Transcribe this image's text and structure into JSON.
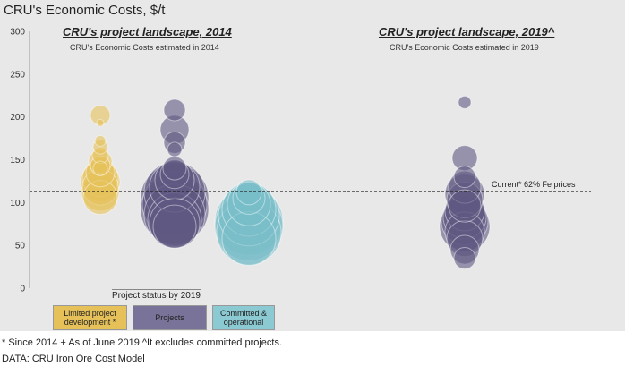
{
  "chart_data": {
    "type": "scatter",
    "title": "CRU's Economic Costs, $/t",
    "ylim": [
      0,
      300
    ],
    "yticks": [
      0,
      50,
      100,
      150,
      200,
      250,
      300
    ],
    "panels": [
      {
        "title": "CRU's project landscape, 2014",
        "note": "CRU's Economic Costs estimated in 2014"
      },
      {
        "title": "CRU's project landscape, 2019^",
        "note": "CRU's Economic Costs estimated in 2019"
      }
    ],
    "reference_line": {
      "label": "Current* 62% Fe prices",
      "y": 113
    },
    "legend_title": "Project status by 2019",
    "series": [
      {
        "name": "Limited project development *",
        "color": "#e6c15a",
        "points": [
          {
            "y": 202,
            "r": 11
          },
          {
            "y": 193,
            "r": 4
          },
          {
            "y": 172,
            "r": 6
          },
          {
            "y": 165,
            "r": 8
          },
          {
            "y": 155,
            "r": 9
          },
          {
            "y": 148,
            "r": 13
          },
          {
            "y": 143,
            "r": 11
          },
          {
            "y": 140,
            "r": 8
          },
          {
            "y": 135,
            "r": 16
          },
          {
            "y": 128,
            "r": 20
          },
          {
            "y": 124,
            "r": 22
          },
          {
            "y": 118,
            "r": 20
          },
          {
            "y": 112,
            "r": 21
          },
          {
            "y": 106,
            "r": 19
          }
        ]
      },
      {
        "name": "Projects",
        "color": "#5f5882",
        "points": [
          {
            "y": 208,
            "r": 12
          },
          {
            "y": 185,
            "r": 16
          },
          {
            "y": 170,
            "r": 12
          },
          {
            "y": 162,
            "r": 8
          },
          {
            "y": 140,
            "r": 13
          },
          {
            "y": 133,
            "r": 16
          },
          {
            "y": 126,
            "r": 22
          },
          {
            "y": 118,
            "r": 28
          },
          {
            "y": 112,
            "r": 34
          },
          {
            "y": 105,
            "r": 38
          },
          {
            "y": 98,
            "r": 36
          },
          {
            "y": 92,
            "r": 38
          },
          {
            "y": 86,
            "r": 34
          },
          {
            "y": 80,
            "r": 30
          },
          {
            "y": 76,
            "r": 28
          },
          {
            "y": 72,
            "r": 24
          }
        ]
      },
      {
        "name": "Committed & operational",
        "color": "#78bec8",
        "points": [
          {
            "y": 112,
            "r": 14
          },
          {
            "y": 105,
            "r": 18
          },
          {
            "y": 98,
            "r": 24
          },
          {
            "y": 92,
            "r": 30
          },
          {
            "y": 85,
            "r": 34
          },
          {
            "y": 78,
            "r": 38
          },
          {
            "y": 72,
            "r": 38
          },
          {
            "y": 65,
            "r": 36
          },
          {
            "y": 58,
            "r": 30
          }
        ]
      },
      {
        "name": "Projects 2019",
        "color": "#5f5882",
        "points": [
          {
            "y": 217,
            "r": 7
          },
          {
            "y": 152,
            "r": 14
          },
          {
            "y": 130,
            "r": 12
          },
          {
            "y": 118,
            "r": 18
          },
          {
            "y": 110,
            "r": 22
          },
          {
            "y": 103,
            "r": 20
          },
          {
            "y": 96,
            "r": 18
          },
          {
            "y": 90,
            "r": 22
          },
          {
            "y": 83,
            "r": 24
          },
          {
            "y": 78,
            "r": 26
          },
          {
            "y": 72,
            "r": 28
          },
          {
            "y": 66,
            "r": 22
          },
          {
            "y": 58,
            "r": 20
          },
          {
            "y": 45,
            "r": 16
          },
          {
            "y": 35,
            "r": 12
          }
        ]
      }
    ]
  },
  "legend": [
    {
      "label": "Limited project development *",
      "color": "#e6c15a"
    },
    {
      "label": "Projects",
      "color": "#7a7399"
    },
    {
      "label": "Committed & operational",
      "color": "#8ccad3"
    }
  ],
  "footnote": "* Since 2014 + As of June 2019 ^It excludes committed projects.",
  "source": "DATA: CRU Iron Ore Cost Model"
}
